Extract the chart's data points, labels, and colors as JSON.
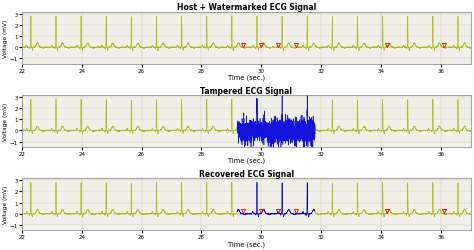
{
  "title1": "Host + Watermarked ECG Signal",
  "title2": "Tampered ECG Signal",
  "title3": "Recovered ECG Signal",
  "xlabel": "Time (sec.)",
  "ylabel": "Voltage (mV)",
  "xlim": [
    22,
    37
  ],
  "ylim1": [
    -1.5,
    3.2
  ],
  "ylim2": [
    -1.5,
    3.2
  ],
  "ylim3": [
    -1.5,
    3.2
  ],
  "ecg_color": "#aabd1a",
  "tamper_color": "#0000dd",
  "marker_color": "#ee0000",
  "bg_color": "#f0f0e8",
  "grid_color": "#c8c8b8",
  "xticks": [
    22,
    24,
    26,
    28,
    30,
    32,
    34,
    36
  ],
  "yticks1": [
    -1,
    0,
    1,
    2,
    3
  ],
  "yticks2": [
    -1,
    0,
    1,
    2,
    3
  ],
  "yticks3": [
    -1,
    0,
    1,
    2,
    3
  ],
  "tamper_start": 29.2,
  "tamper_end": 31.8,
  "u_wave_x1": [
    29.4,
    30.0,
    30.55,
    31.15,
    34.2,
    36.1
  ],
  "u_wave_y1": [
    0.22,
    0.22,
    0.22,
    0.22,
    0.22,
    0.22
  ],
  "u_wave_x3": [
    29.4,
    30.0,
    30.55,
    31.15,
    34.2,
    36.1
  ],
  "u_wave_y3": [
    0.22,
    0.22,
    0.22,
    0.22,
    0.22,
    0.22
  ],
  "beat_interval": 0.84,
  "beat_start": 22.3,
  "r_amplitude": 2.8,
  "figsize": [
    4.74,
    2.51
  ],
  "dpi": 100
}
